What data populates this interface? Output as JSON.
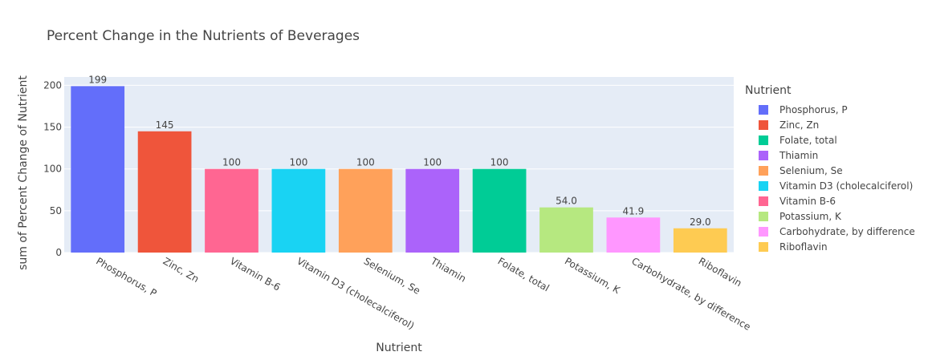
{
  "chart_data": {
    "type": "bar",
    "title": "Percent Change in the Nutrients of Beverages",
    "xlabel": "Nutrient",
    "ylabel": "sum of Percent Change of Nutrient",
    "ylim": [
      0,
      210
    ],
    "yticks": [
      0,
      50,
      100,
      150,
      200
    ],
    "grid": true,
    "legend_position": "right",
    "legend_title": "Nutrient",
    "categories": [
      "Phosphorus, P",
      "Zinc, Zn",
      "Vitamin B-6",
      "Vitamin D3 (cholecalciferol)",
      "Selenium, Se",
      "Thiamin",
      "Folate, total",
      "Potassium, K",
      "Carbohydrate, by difference",
      "Riboflavin"
    ],
    "values": [
      199,
      145,
      100,
      100,
      100,
      100,
      100,
      54.0,
      41.9,
      29.0
    ],
    "data_labels": [
      "199",
      "145",
      "100",
      "100",
      "100",
      "100",
      "100",
      "54.0",
      "41.9",
      "29.0"
    ],
    "colors": [
      "#636efa",
      "#EF553B",
      "#FF6692",
      "#19d3f3",
      "#FFA15A",
      "#ab63fa",
      "#00cc96",
      "#B6E880",
      "#FF97FF",
      "#FECB52"
    ],
    "legend": [
      {
        "label": "Phosphorus, P",
        "color": "#636efa"
      },
      {
        "label": "Zinc, Zn",
        "color": "#EF553B"
      },
      {
        "label": "Folate, total",
        "color": "#00cc96"
      },
      {
        "label": "Thiamin",
        "color": "#ab63fa"
      },
      {
        "label": "Selenium, Se",
        "color": "#FFA15A"
      },
      {
        "label": "Vitamin D3 (cholecalciferol)",
        "color": "#19d3f3"
      },
      {
        "label": "Vitamin B-6",
        "color": "#FF6692"
      },
      {
        "label": "Potassium, K",
        "color": "#B6E880"
      },
      {
        "label": "Carbohydrate, by difference",
        "color": "#FF97FF"
      },
      {
        "label": "Riboflavin",
        "color": "#FECB52"
      }
    ],
    "plot_background": "#e5ecf6"
  }
}
